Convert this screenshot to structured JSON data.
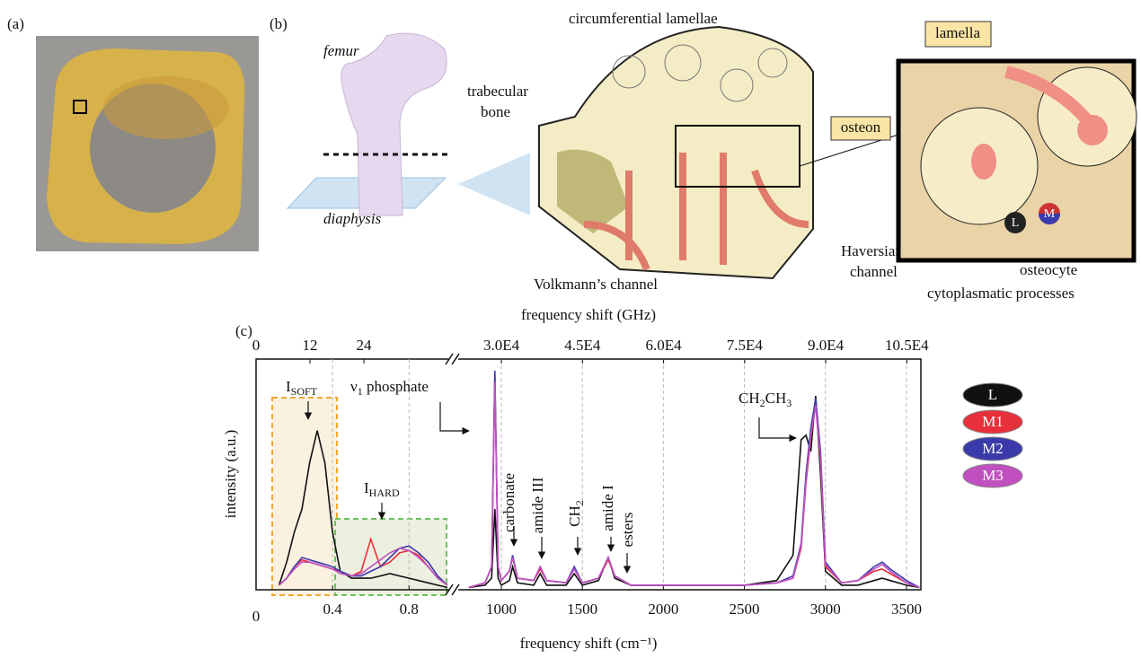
{
  "figure": {
    "panel_labels": [
      "(a)",
      "(b)",
      "(c)"
    ],
    "femur": "femur",
    "diaphysis": "diaphysis",
    "circumferential": "circumferential lamellae",
    "trabecular": [
      "trabecular",
      "bone"
    ],
    "osteon": "osteon",
    "haversian": [
      "Haversian",
      "channel"
    ],
    "volkmann": "Volkmann’s channel",
    "lamella": "lamella",
    "osteocyte": "osteocyte",
    "cytoplasmatic": "cytoplasmatic processes",
    "cell_labels": [
      "L",
      "M"
    ]
  },
  "chart_data": [
    {
      "type": "line",
      "ylabel": "intensity (a.u.)",
      "x": [
        0.12,
        0.16,
        0.2,
        0.24,
        0.28,
        0.32,
        0.36,
        0.4,
        0.44,
        0.5,
        0.55,
        0.6,
        0.65,
        0.7,
        0.75,
        0.8,
        0.85,
        0.9,
        0.95,
        1.0
      ],
      "series": [
        {
          "color": "#111111",
          "values": [
            0.02,
            0.12,
            0.25,
            0.35,
            0.55,
            0.69,
            0.55,
            0.25,
            0.08,
            0.05,
            0.05,
            0.05,
            0.06,
            0.07,
            0.06,
            0.05,
            0.04,
            0.03,
            0.02,
            0.01
          ]
        },
        {
          "color": "#e8303a",
          "values": [
            0.02,
            0.05,
            0.1,
            0.13,
            0.12,
            0.11,
            0.1,
            0.09,
            0.08,
            0.06,
            0.08,
            0.22,
            0.1,
            0.12,
            0.16,
            0.17,
            0.15,
            0.1,
            0.05,
            0.02
          ]
        },
        {
          "color": "#3a3aaa",
          "values": [
            0.02,
            0.05,
            0.1,
            0.14,
            0.13,
            0.12,
            0.11,
            0.1,
            0.08,
            0.06,
            0.06,
            0.08,
            0.1,
            0.14,
            0.18,
            0.19,
            0.16,
            0.12,
            0.06,
            0.02
          ]
        },
        {
          "color": "#c050c0",
          "values": [
            0.02,
            0.05,
            0.09,
            0.12,
            0.12,
            0.11,
            0.1,
            0.09,
            0.07,
            0.06,
            0.07,
            0.1,
            0.13,
            0.16,
            0.18,
            0.17,
            0.14,
            0.1,
            0.05,
            0.02
          ]
        }
      ],
      "xlim": [
        0,
        1.01
      ],
      "xticks": [
        0,
        0.4,
        0.8
      ],
      "x2lim": [
        0,
        43
      ],
      "x2ticks": [
        0,
        12,
        24
      ],
      "ylim": [
        0,
        1
      ],
      "grid": true,
      "annotations": [
        {
          "parts": [
            {
              "text": "I"
            },
            {
              "sub": "SOFT"
            }
          ]
        },
        {
          "parts": [
            {
              "text": "I"
            },
            {
              "sub": "HARD"
            }
          ]
        }
      ]
    },
    {
      "type": "line",
      "xlabel": "frequency shift (cm⁻¹)",
      "x2label": "frequency shift (GHz)",
      "x": [
        800,
        900,
        940,
        960,
        980,
        1000,
        1050,
        1070,
        1100,
        1200,
        1240,
        1280,
        1400,
        1450,
        1500,
        1600,
        1660,
        1700,
        1800,
        2000,
        2500,
        2700,
        2800,
        2850,
        2880,
        2910,
        2940,
        2970,
        3000,
        3100,
        3200,
        3300,
        3350,
        3400,
        3500,
        3580
      ],
      "series": [
        {
          "name": "L",
          "color": "#111111",
          "values": [
            0.01,
            0.02,
            0.05,
            0.35,
            0.05,
            0.02,
            0.04,
            0.1,
            0.03,
            0.02,
            0.07,
            0.02,
            0.02,
            0.07,
            0.02,
            0.04,
            0.14,
            0.05,
            0.02,
            0.02,
            0.02,
            0.04,
            0.15,
            0.65,
            0.67,
            0.6,
            0.84,
            0.5,
            0.08,
            0.02,
            0.02,
            0.04,
            0.05,
            0.04,
            0.02,
            0.01
          ]
        },
        {
          "name": "M1",
          "color": "#e8303a",
          "values": [
            0.01,
            0.03,
            0.1,
            0.93,
            0.1,
            0.04,
            0.08,
            0.14,
            0.05,
            0.04,
            0.09,
            0.04,
            0.03,
            0.09,
            0.03,
            0.05,
            0.13,
            0.06,
            0.02,
            0.02,
            0.02,
            0.03,
            0.05,
            0.18,
            0.46,
            0.66,
            0.8,
            0.56,
            0.1,
            0.03,
            0.04,
            0.08,
            0.09,
            0.07,
            0.03,
            0.01
          ]
        },
        {
          "name": "M2",
          "color": "#3a3aaa",
          "values": [
            0.01,
            0.03,
            0.1,
            0.95,
            0.1,
            0.04,
            0.08,
            0.15,
            0.05,
            0.04,
            0.1,
            0.04,
            0.03,
            0.1,
            0.03,
            0.05,
            0.14,
            0.06,
            0.02,
            0.02,
            0.02,
            0.03,
            0.06,
            0.2,
            0.5,
            0.7,
            0.83,
            0.6,
            0.12,
            0.03,
            0.04,
            0.1,
            0.12,
            0.09,
            0.04,
            0.01
          ]
        },
        {
          "name": "M3",
          "color": "#c050c0",
          "values": [
            0.01,
            0.03,
            0.1,
            0.9,
            0.1,
            0.04,
            0.08,
            0.14,
            0.05,
            0.04,
            0.1,
            0.04,
            0.03,
            0.09,
            0.03,
            0.05,
            0.14,
            0.06,
            0.02,
            0.02,
            0.02,
            0.03,
            0.05,
            0.19,
            0.47,
            0.67,
            0.8,
            0.57,
            0.11,
            0.03,
            0.04,
            0.09,
            0.11,
            0.08,
            0.03,
            0.01
          ]
        }
      ],
      "xlim": [
        734,
        3589
      ],
      "xticks": [
        1000,
        1500,
        2000,
        2500,
        3000,
        3500
      ],
      "x2lim": [
        22005,
        107600
      ],
      "x2ticks": [
        {
          "value": 30000,
          "label": "3.0E4"
        },
        {
          "value": 45000,
          "label": "4.5E4"
        },
        {
          "value": 60000,
          "label": "6.0E4"
        },
        {
          "value": 75000,
          "label": "7.5E4"
        },
        {
          "value": 90000,
          "label": "9.0E4"
        },
        {
          "value": 105000,
          "label": "10.5E4"
        }
      ],
      "ylim": [
        0,
        1
      ],
      "grid": true,
      "legend": "right",
      "annotations": [
        {
          "parts": [
            {
              "text": "ν"
            },
            {
              "sub": "1"
            },
            {
              "text": " phosphate"
            }
          ]
        },
        {
          "parts": [
            {
              "text": "CH"
            },
            {
              "sub": "2"
            },
            {
              "text": "CH"
            },
            {
              "sub": "3"
            }
          ]
        },
        {
          "parts": [
            {
              "text": "carbonate"
            }
          ]
        },
        {
          "parts": [
            {
              "text": "amide III"
            }
          ]
        },
        {
          "parts": [
            {
              "text": "CH"
            },
            {
              "sub": "2"
            }
          ]
        },
        {
          "parts": [
            {
              "text": "amide I"
            }
          ]
        },
        {
          "parts": [
            {
              "text": "esters"
            }
          ]
        }
      ]
    }
  ]
}
